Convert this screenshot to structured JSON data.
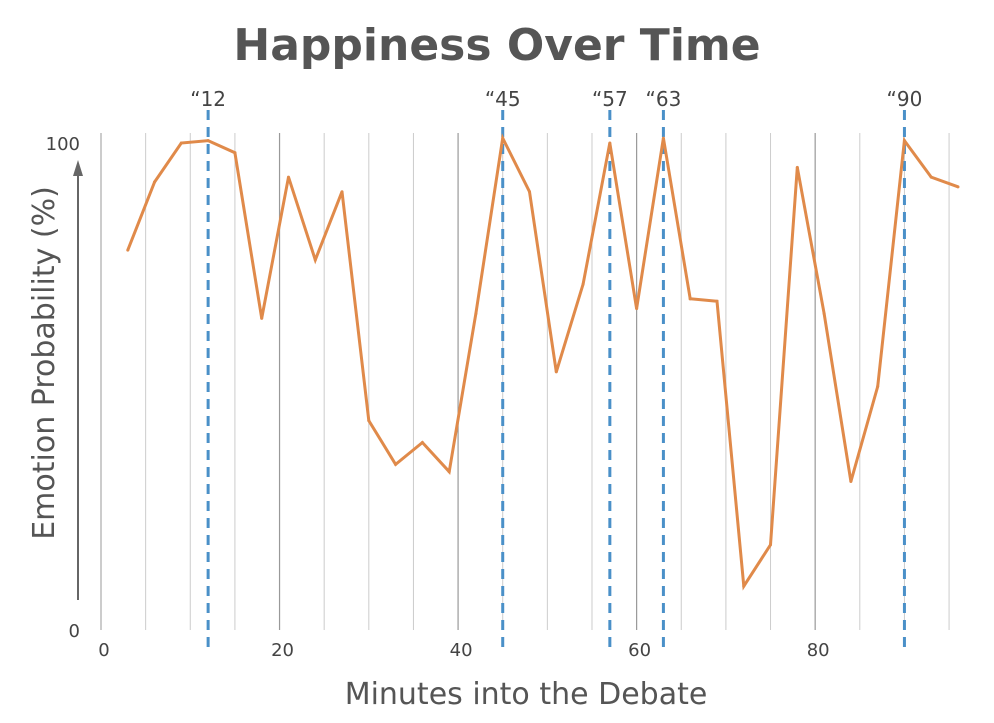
{
  "chart_data": {
    "type": "line",
    "title": "Happiness Over Time",
    "xlabel": "Minutes into the Debate",
    "ylabel": "Emotion Probability (%)",
    "xlim": [
      0,
      96
    ],
    "ylim": [
      0,
      100
    ],
    "x_ticks": [
      {
        "value": 0,
        "label": "0"
      },
      {
        "value": 20,
        "label": "20"
      },
      {
        "value": 40,
        "label": "40"
      },
      {
        "value": 60,
        "label": "60"
      },
      {
        "value": 80,
        "label": "80"
      }
    ],
    "y_ticks": [
      {
        "value": 0,
        "label": "0"
      },
      {
        "value": 100,
        "label": "100"
      }
    ],
    "grid": "vertical",
    "series": [
      {
        "color": "#e08a4a",
        "x": [
          3,
          6,
          9,
          12,
          15,
          18,
          21,
          24,
          27,
          30,
          33,
          36,
          39,
          42,
          45,
          48,
          51,
          54,
          57,
          60,
          63,
          66,
          69,
          72,
          75,
          78,
          81,
          84,
          87,
          90,
          93,
          96
        ],
        "y": [
          78,
          92,
          100,
          100.5,
          98,
          64,
          93,
          76,
          90,
          43,
          34,
          38.5,
          32.5,
          65,
          101,
          90,
          53,
          71,
          100,
          66,
          101,
          68,
          67.5,
          9,
          17.5,
          95,
          65,
          30.5,
          50,
          100.5,
          93,
          91
        ]
      }
    ],
    "reference_lines": [
      {
        "x": 12,
        "label": "“12",
        "color": "#4a90c8"
      },
      {
        "x": 45,
        "label": "“45",
        "color": "#4a90c8"
      },
      {
        "x": 57,
        "label": "“57",
        "color": "#4a90c8"
      },
      {
        "x": 63,
        "label": "“63",
        "color": "#4a90c8"
      },
      {
        "x": 90,
        "label": "“90",
        "color": "#4a90c8"
      }
    ],
    "gridline_color": "#cccccc",
    "major_gridline_color": "#999999",
    "axis_color": "#666666"
  }
}
